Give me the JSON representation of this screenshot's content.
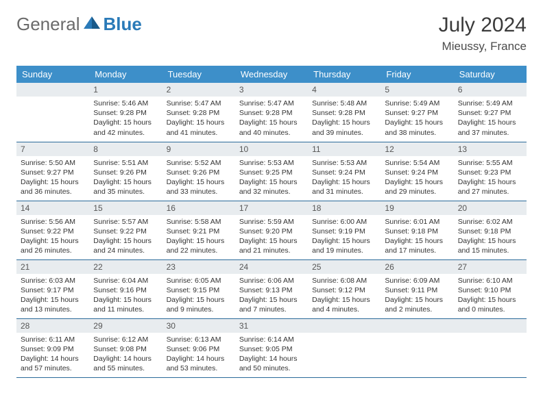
{
  "brand": {
    "part1": "General",
    "part2": "Blue"
  },
  "title": "July 2024",
  "location": "Mieussy, France",
  "colors": {
    "header_bg": "#3d8fc9",
    "daynum_bg": "#e8ecef",
    "row_border": "#2a6a9a",
    "brand_gray": "#6a6a6a",
    "brand_blue": "#2a7ab8"
  },
  "weekdays": [
    "Sunday",
    "Monday",
    "Tuesday",
    "Wednesday",
    "Thursday",
    "Friday",
    "Saturday"
  ],
  "weeks": [
    [
      {
        "empty": true
      },
      {
        "n": "1",
        "sr": "5:46 AM",
        "ss": "9:28 PM",
        "dl": "15 hours and 42 minutes."
      },
      {
        "n": "2",
        "sr": "5:47 AM",
        "ss": "9:28 PM",
        "dl": "15 hours and 41 minutes."
      },
      {
        "n": "3",
        "sr": "5:47 AM",
        "ss": "9:28 PM",
        "dl": "15 hours and 40 minutes."
      },
      {
        "n": "4",
        "sr": "5:48 AM",
        "ss": "9:28 PM",
        "dl": "15 hours and 39 minutes."
      },
      {
        "n": "5",
        "sr": "5:49 AM",
        "ss": "9:27 PM",
        "dl": "15 hours and 38 minutes."
      },
      {
        "n": "6",
        "sr": "5:49 AM",
        "ss": "9:27 PM",
        "dl": "15 hours and 37 minutes."
      }
    ],
    [
      {
        "n": "7",
        "sr": "5:50 AM",
        "ss": "9:27 PM",
        "dl": "15 hours and 36 minutes."
      },
      {
        "n": "8",
        "sr": "5:51 AM",
        "ss": "9:26 PM",
        "dl": "15 hours and 35 minutes."
      },
      {
        "n": "9",
        "sr": "5:52 AM",
        "ss": "9:26 PM",
        "dl": "15 hours and 33 minutes."
      },
      {
        "n": "10",
        "sr": "5:53 AM",
        "ss": "9:25 PM",
        "dl": "15 hours and 32 minutes."
      },
      {
        "n": "11",
        "sr": "5:53 AM",
        "ss": "9:24 PM",
        "dl": "15 hours and 31 minutes."
      },
      {
        "n": "12",
        "sr": "5:54 AM",
        "ss": "9:24 PM",
        "dl": "15 hours and 29 minutes."
      },
      {
        "n": "13",
        "sr": "5:55 AM",
        "ss": "9:23 PM",
        "dl": "15 hours and 27 minutes."
      }
    ],
    [
      {
        "n": "14",
        "sr": "5:56 AM",
        "ss": "9:22 PM",
        "dl": "15 hours and 26 minutes."
      },
      {
        "n": "15",
        "sr": "5:57 AM",
        "ss": "9:22 PM",
        "dl": "15 hours and 24 minutes."
      },
      {
        "n": "16",
        "sr": "5:58 AM",
        "ss": "9:21 PM",
        "dl": "15 hours and 22 minutes."
      },
      {
        "n": "17",
        "sr": "5:59 AM",
        "ss": "9:20 PM",
        "dl": "15 hours and 21 minutes."
      },
      {
        "n": "18",
        "sr": "6:00 AM",
        "ss": "9:19 PM",
        "dl": "15 hours and 19 minutes."
      },
      {
        "n": "19",
        "sr": "6:01 AM",
        "ss": "9:18 PM",
        "dl": "15 hours and 17 minutes."
      },
      {
        "n": "20",
        "sr": "6:02 AM",
        "ss": "9:18 PM",
        "dl": "15 hours and 15 minutes."
      }
    ],
    [
      {
        "n": "21",
        "sr": "6:03 AM",
        "ss": "9:17 PM",
        "dl": "15 hours and 13 minutes."
      },
      {
        "n": "22",
        "sr": "6:04 AM",
        "ss": "9:16 PM",
        "dl": "15 hours and 11 minutes."
      },
      {
        "n": "23",
        "sr": "6:05 AM",
        "ss": "9:15 PM",
        "dl": "15 hours and 9 minutes."
      },
      {
        "n": "24",
        "sr": "6:06 AM",
        "ss": "9:13 PM",
        "dl": "15 hours and 7 minutes."
      },
      {
        "n": "25",
        "sr": "6:08 AM",
        "ss": "9:12 PM",
        "dl": "15 hours and 4 minutes."
      },
      {
        "n": "26",
        "sr": "6:09 AM",
        "ss": "9:11 PM",
        "dl": "15 hours and 2 minutes."
      },
      {
        "n": "27",
        "sr": "6:10 AM",
        "ss": "9:10 PM",
        "dl": "15 hours and 0 minutes."
      }
    ],
    [
      {
        "n": "28",
        "sr": "6:11 AM",
        "ss": "9:09 PM",
        "dl": "14 hours and 57 minutes."
      },
      {
        "n": "29",
        "sr": "6:12 AM",
        "ss": "9:08 PM",
        "dl": "14 hours and 55 minutes."
      },
      {
        "n": "30",
        "sr": "6:13 AM",
        "ss": "9:06 PM",
        "dl": "14 hours and 53 minutes."
      },
      {
        "n": "31",
        "sr": "6:14 AM",
        "ss": "9:05 PM",
        "dl": "14 hours and 50 minutes."
      },
      {
        "empty": true
      },
      {
        "empty": true
      },
      {
        "empty": true
      }
    ]
  ],
  "labels": {
    "sunrise": "Sunrise:",
    "sunset": "Sunset:",
    "daylight": "Daylight:"
  }
}
